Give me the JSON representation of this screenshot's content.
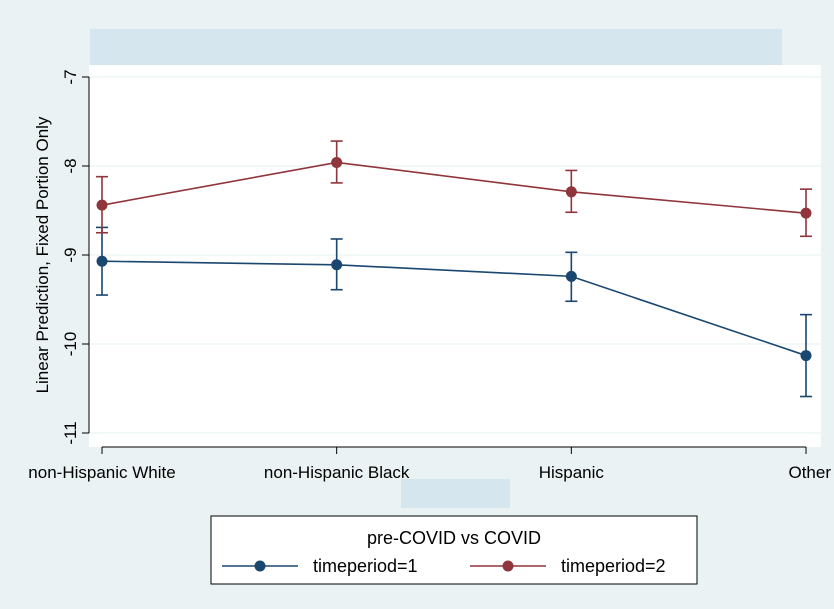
{
  "chart_data": {
    "type": "line",
    "title": "",
    "xlabel": "",
    "ylabel": "Linear Prediction, Fixed Portion Only",
    "categories": [
      "non-Hispanic White",
      "non-Hispanic Black",
      "Hispanic",
      "Other"
    ],
    "ylim": [
      -11,
      -7
    ],
    "yticks": [
      -11,
      -10,
      -9,
      -8,
      -7
    ],
    "ytick_labels": [
      "-11",
      "-10",
      "-9",
      "-8",
      "-7"
    ],
    "grid": true,
    "legend_position": "bottom",
    "legend_title": "pre-COVID vs COVID",
    "series": [
      {
        "name": "timeperiod=1",
        "color": "#1a476f",
        "values": [
          -9.07,
          -9.11,
          -9.24,
          -10.13
        ],
        "ci_low": [
          -9.45,
          -9.39,
          -9.52,
          -10.59
        ],
        "ci_high": [
          -8.69,
          -8.82,
          -8.97,
          -9.67
        ]
      },
      {
        "name": "timeperiod=2",
        "color": "#90353b",
        "values": [
          -8.44,
          -7.96,
          -8.29,
          -8.53
        ],
        "ci_low": [
          -8.75,
          -8.19,
          -8.52,
          -8.79
        ],
        "ci_high": [
          -8.12,
          -7.72,
          -8.05,
          -8.26
        ]
      }
    ]
  },
  "colors": {
    "outer_background": "#eaf2f3",
    "plot_background": "#ffffff",
    "title_band": "#d6e6ee",
    "grid": "#eaf2f3"
  }
}
